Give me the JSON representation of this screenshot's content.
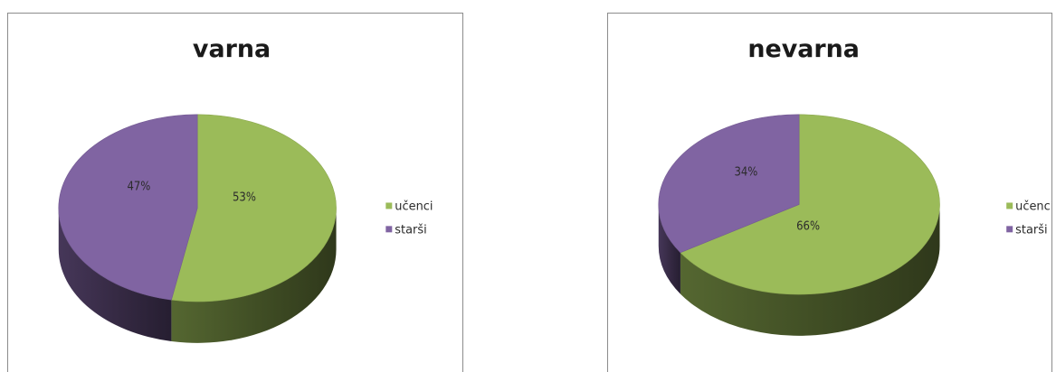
{
  "chart_data": [
    {
      "type": "pie",
      "title": "varna",
      "categories": [
        "učenci",
        "starši"
      ],
      "values": [
        53,
        47
      ],
      "value_labels": [
        "53%",
        "47%"
      ],
      "colors": [
        "#9bbb59",
        "#8064a2"
      ],
      "legend_position": "right",
      "style": "3d"
    },
    {
      "type": "pie",
      "title": "nevarna",
      "categories": [
        "učenci",
        "starši"
      ],
      "values": [
        66,
        34
      ],
      "value_labels": [
        "66%",
        "34%"
      ],
      "colors": [
        "#9bbb59",
        "#8064a2"
      ],
      "legend_position": "right",
      "style": "3d"
    }
  ]
}
